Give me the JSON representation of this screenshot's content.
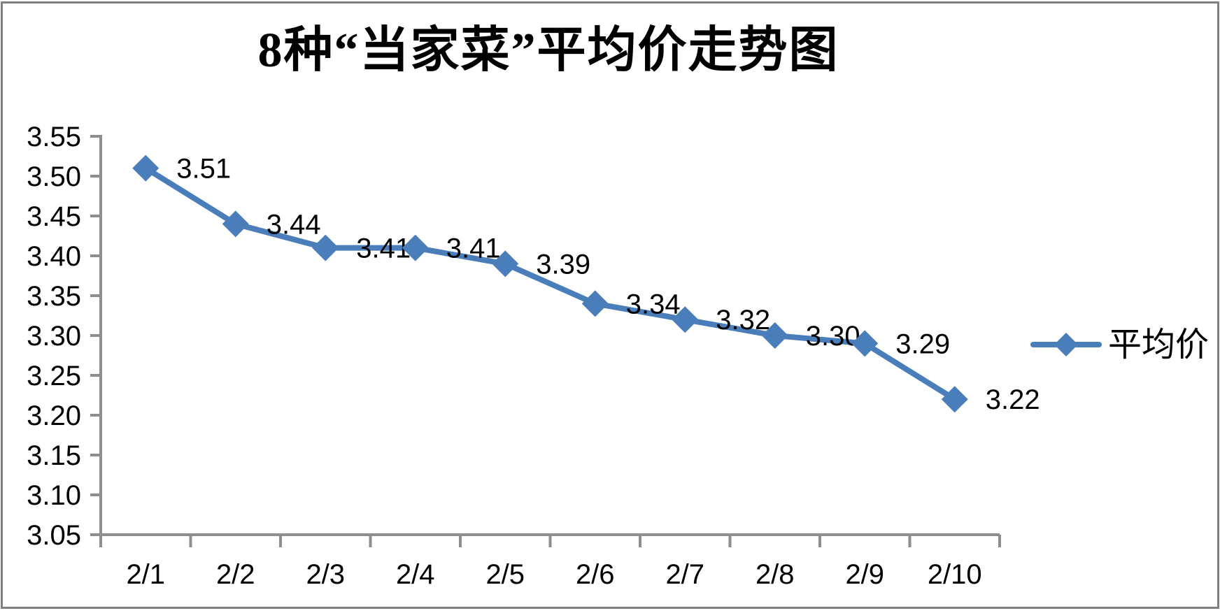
{
  "chart_data": {
    "type": "line",
    "title": "8种“当家菜”平均价走势图",
    "categories": [
      "2/1",
      "2/2",
      "2/3",
      "2/4",
      "2/5",
      "2/6",
      "2/7",
      "2/8",
      "2/9",
      "2/10"
    ],
    "series": [
      {
        "name": "平均价",
        "values": [
          3.51,
          3.44,
          3.41,
          3.41,
          3.39,
          3.34,
          3.32,
          3.3,
          3.29,
          3.22
        ],
        "point_labels": [
          "3.51",
          "3.44",
          "3.41",
          "3.41",
          "3.39",
          "3.34",
          "3.32",
          "3.30",
          "3.29",
          "3.22"
        ]
      }
    ],
    "xlabel": "",
    "ylabel": "",
    "ylim": [
      3.05,
      3.55
    ],
    "ytick_step": 0.05,
    "ytick_labels": [
      "3.55",
      "3.50",
      "3.45",
      "3.40",
      "3.35",
      "3.30",
      "3.25",
      "3.20",
      "3.15",
      "3.10",
      "3.05"
    ],
    "grid": false,
    "marker": "diamond",
    "legend": {
      "position": "right",
      "entries": [
        "平均价"
      ]
    },
    "colors": {
      "series": "#4A7EBB",
      "axis": "#8E8E8E",
      "text": "#000000",
      "frame_border": "#7F7F7F",
      "background": "#FFFFFF"
    }
  }
}
